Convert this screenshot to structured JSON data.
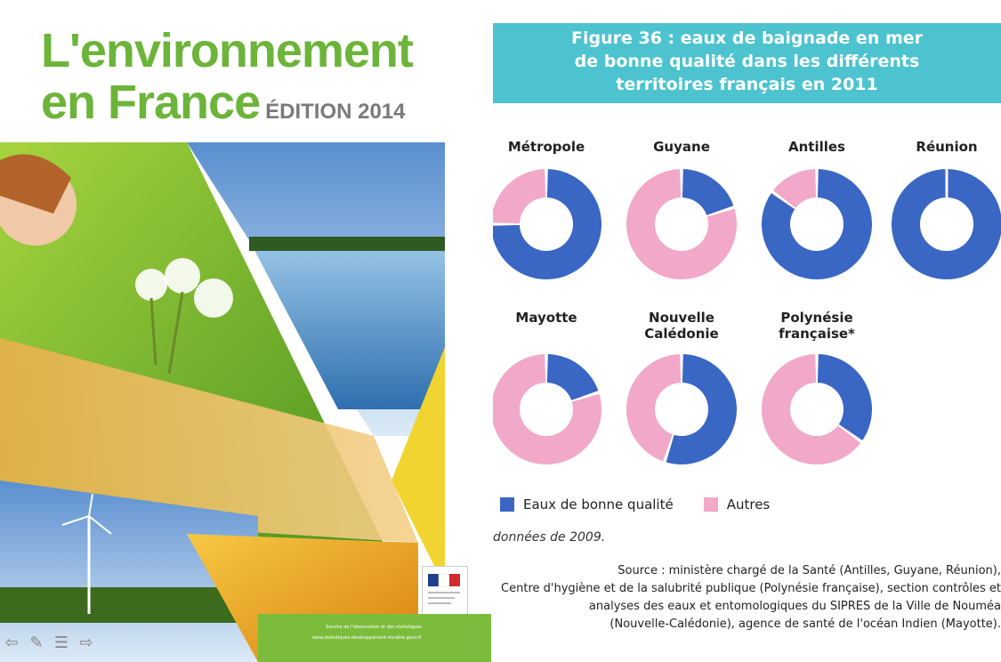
{
  "cover": {
    "title_line1": "L'environnement",
    "title_line2": "en France",
    "edition": "ÉDITION 2014",
    "footer_line1": "Service de l'observation et des statistiques",
    "footer_line2": "www.statistiques.developpement-durable.gouv.fr",
    "title_color": "#6cb43a"
  },
  "figure": {
    "title": "Figure 36 : eaux de baignade en mer\nde bonne qualité dans les différents\nterritoires français en 2011",
    "header_color": "#4cc3cf"
  },
  "chart_data": {
    "type": "pie",
    "variant": "donut",
    "series_names": [
      "Eaux de bonne qualité",
      "Autres"
    ],
    "colors": {
      "good": "#3a66c4",
      "other": "#f2a8c8"
    },
    "territories": [
      {
        "name": "Métropole",
        "good_pct": 75,
        "other_pct": 25
      },
      {
        "name": "Guyane",
        "good_pct": 20,
        "other_pct": 80
      },
      {
        "name": "Antilles",
        "good_pct": 85,
        "other_pct": 15
      },
      {
        "name": "Réunion",
        "good_pct": 100,
        "other_pct": 0
      },
      {
        "name": "Mayotte",
        "good_pct": 20,
        "other_pct": 80
      },
      {
        "name": "Nouvelle\nCalédonie",
        "good_pct": 55,
        "other_pct": 45
      },
      {
        "name": "Polynésie\nfrançaise*",
        "good_pct": 35,
        "other_pct": 65
      }
    ],
    "legend": [
      "Eaux de bonne qualité",
      "Autres"
    ],
    "note": "données de 2009.",
    "source": "Source : ministère chargé de la Santé (Antilles, Guyane, Réunion),\nCentre d'hygiène et de la salubrité publique (Polynésie française), section contrôles et\nanalyses des eaux et entomologiques du SIPRES de la Ville de Nouméa\n(Nouvelle-Calédonie), agence de santé de l'océan Indien (Mayotte)."
  }
}
